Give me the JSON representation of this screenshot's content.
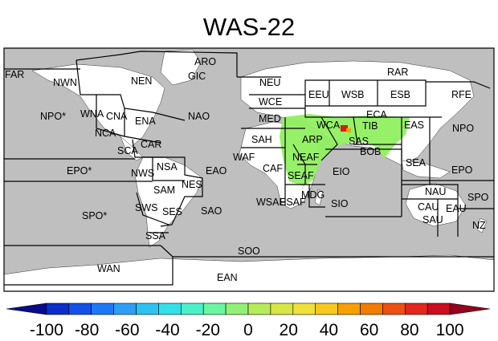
{
  "title": "WAS-22",
  "colors": {
    "ocean": "#bfbfbf",
    "land": "#ffffff",
    "region_border": "#000000",
    "anomaly_light": "#90f060",
    "anomaly_high": "#e8121e",
    "anomaly_mid": "#f5a000"
  },
  "regions": {
    "arctic": [
      "ARO",
      "GIC",
      "RAR",
      "NEU",
      "NEN",
      "FAR"
    ],
    "americas": [
      "NWN",
      "WNA",
      "CNA",
      "ENA",
      "NCA",
      "SCA",
      "CAR",
      "NWS",
      "NSA",
      "NES",
      "SAM",
      "SWS",
      "SES",
      "SSA"
    ],
    "europe_asia": [
      "WCE",
      "MED",
      "EEU",
      "WSB",
      "ESB",
      "RFE",
      "ECA",
      "TIB",
      "EAS",
      "WCA",
      "SAS",
      "BOB",
      "SEA",
      "ARP"
    ],
    "africa": [
      "SAH",
      "WAF",
      "CAF",
      "NEAF",
      "SEAF",
      "WSAF",
      "ESAF",
      "MDG"
    ],
    "oceans": [
      "NPO*",
      "NAO",
      "NPO",
      "EPO*",
      "EAO",
      "EIO",
      "EPO",
      "SPO*",
      "SAO",
      "SIO",
      "SPO",
      "SOO"
    ],
    "oceania_ant": [
      "NAU",
      "CAU",
      "EAU",
      "SAU",
      "NZ",
      "WAN",
      "EAN"
    ]
  },
  "colorbar": {
    "ticks": [
      "-100",
      "-80",
      "-60",
      "-40",
      "-20",
      "0",
      "20",
      "40",
      "60",
      "80",
      "100"
    ],
    "colors": [
      "#0a0a8c",
      "#0d2ec8",
      "#1450e6",
      "#1e78f5",
      "#2e9ef5",
      "#2dc2f0",
      "#33e0e6",
      "#4cf0c8",
      "#6cf5a0",
      "#92f078",
      "#b6ec5a",
      "#d6e646",
      "#f0e03a",
      "#f5c81e",
      "#f5a000",
      "#f07c00",
      "#eb5014",
      "#e1281e",
      "#c8101e",
      "#96001e"
    ]
  }
}
